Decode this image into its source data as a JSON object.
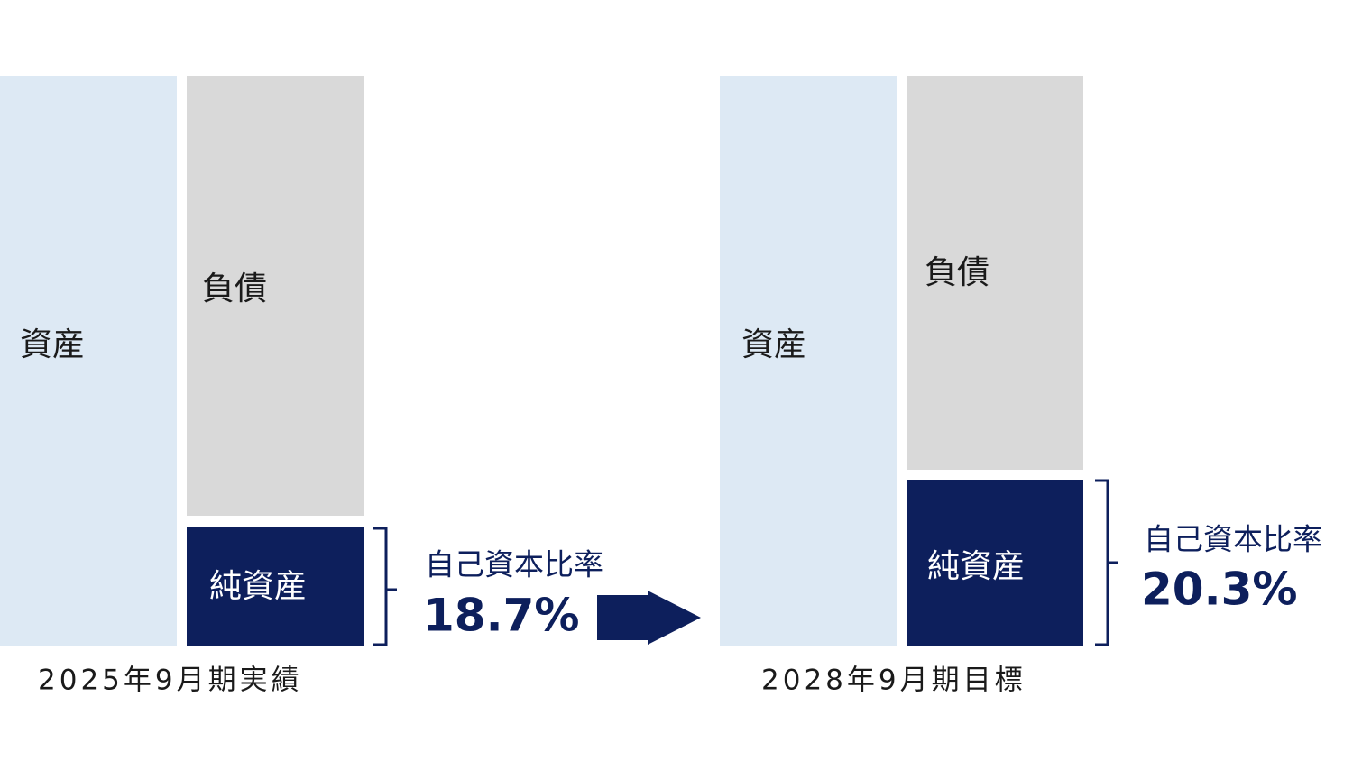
{
  "left": {
    "assets": "資産",
    "liabilities": "負債",
    "net_assets": "純資産",
    "ratio_label": "自己資本比率",
    "ratio": "18.7%",
    "period": "2025年9月期実績"
  },
  "right": {
    "assets": "資産",
    "liabilities": "負債",
    "net_assets": "純資産",
    "ratio_label": "自己資本比率",
    "ratio": "20.3%",
    "period": "2028年9月期目標"
  }
}
